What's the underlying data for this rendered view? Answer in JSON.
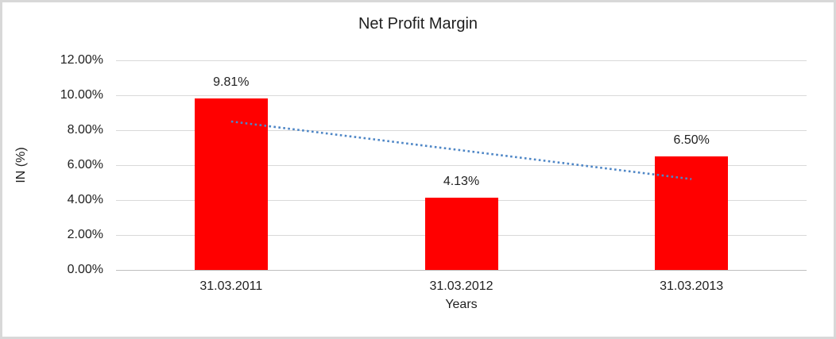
{
  "chart_data": {
    "type": "bar",
    "title": "Net Profit Margin",
    "xlabel": "Years",
    "ylabel": "IN (%)",
    "categories": [
      "31.03.2011",
      "31.03.2012",
      "31.03.2013"
    ],
    "values": [
      9.81,
      4.13,
      6.5
    ],
    "data_labels": [
      "9.81%",
      "4.13%",
      "6.50%"
    ],
    "ylim": [
      0,
      12
    ],
    "ytick_step": 2,
    "ytick_labels": [
      "0.00%",
      "2.00%",
      "4.00%",
      "6.00%",
      "8.00%",
      "10.00%",
      "12.00%"
    ],
    "grid": true,
    "legend": "none",
    "bar_color": "#ff0000",
    "trendline": {
      "type": "linear",
      "style": "dotted",
      "color": "#4e86c6",
      "start_value": 8.5,
      "end_value": 5.2
    }
  }
}
